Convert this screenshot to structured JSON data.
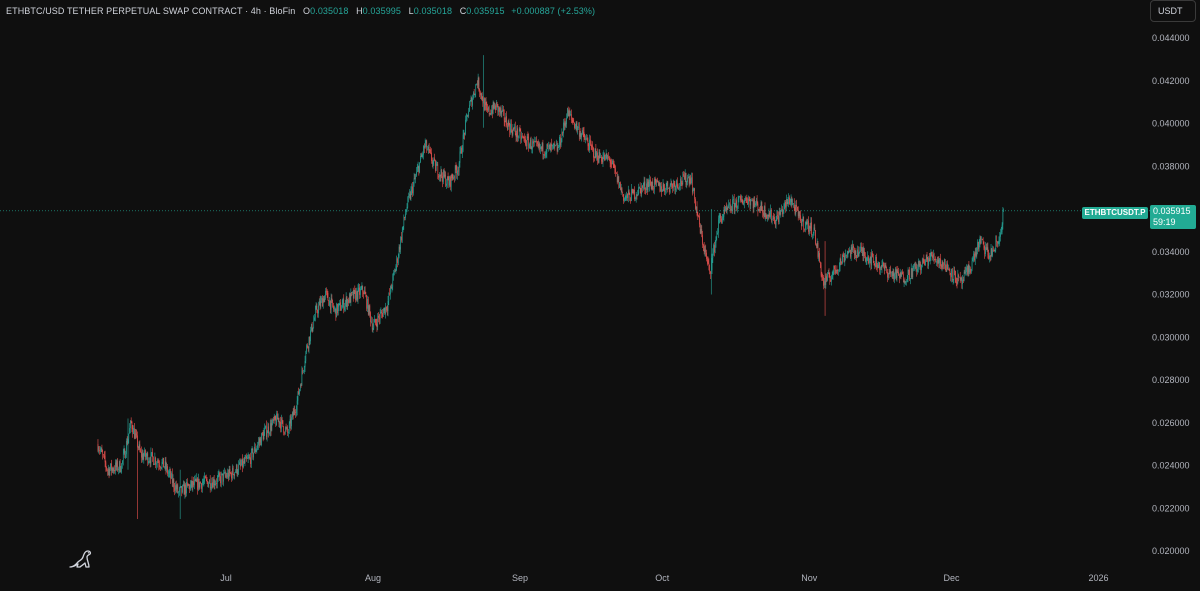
{
  "header": {
    "symbol": "ETHBTC/USD TETHER PERPETUAL SWAP CONTRACT · 4h · BloFin",
    "o_label": "O",
    "o_value": "0.035018",
    "h_label": "H",
    "h_value": "0.035995",
    "l_label": "L",
    "l_value": "0.035018",
    "c_label": "C",
    "c_value": "0.035915",
    "change": "+0.000887 (+2.53%)"
  },
  "currency_button": "USDT",
  "price_tag": {
    "symbol": "ETHBTCUSDT.P",
    "price": "0.035915",
    "countdown": "59:19"
  },
  "colors": {
    "up": "#26a69a",
    "down": "#ef5350",
    "background": "#0f0f0f",
    "axis_text": "#b2b5be",
    "accent": "#22ab94"
  },
  "logo_icon": "dinosaur-icon",
  "chart_data": {
    "type": "candlestick",
    "timeframe": "4h",
    "ylim": [
      0.0195,
      0.0445
    ],
    "y_ticks": [
      "0.044000",
      "0.042000",
      "0.040000",
      "0.038000",
      "0.036000",
      "0.034000",
      "0.032000",
      "0.030000",
      "0.028000",
      "0.026000",
      "0.024000",
      "0.022000",
      "0.020000"
    ],
    "x_ticks": [
      "Jul",
      "Aug",
      "Sep",
      "Oct",
      "Nov",
      "Dec",
      "2026"
    ],
    "current_price": 0.035915,
    "grid": false,
    "series": [
      {
        "name": "ETHBTCUSDT.P",
        "trend": [
          [
            "2025-06-04",
            0.025
          ],
          [
            "2025-06-06",
            0.0238
          ],
          [
            "2025-06-09",
            0.024
          ],
          [
            "2025-06-11",
            0.026
          ],
          [
            "2025-06-13",
            0.0245
          ],
          [
            "2025-06-16",
            0.0243
          ],
          [
            "2025-06-18",
            0.024
          ],
          [
            "2025-06-21",
            0.0227
          ],
          [
            "2025-06-23",
            0.023
          ],
          [
            "2025-06-26",
            0.0232
          ],
          [
            "2025-06-29",
            0.0233
          ],
          [
            "2025-07-02",
            0.0236
          ],
          [
            "2025-07-06",
            0.0243
          ],
          [
            "2025-07-09",
            0.0255
          ],
          [
            "2025-07-12",
            0.0262
          ],
          [
            "2025-07-14",
            0.0255
          ],
          [
            "2025-07-16",
            0.027
          ],
          [
            "2025-07-18",
            0.0295
          ],
          [
            "2025-07-20",
            0.0312
          ],
          [
            "2025-07-22",
            0.032
          ],
          [
            "2025-07-24",
            0.0312
          ],
          [
            "2025-07-27",
            0.0318
          ],
          [
            "2025-07-30",
            0.0322
          ],
          [
            "2025-08-01",
            0.0305
          ],
          [
            "2025-08-04",
            0.0315
          ],
          [
            "2025-08-06",
            0.0335
          ],
          [
            "2025-08-08",
            0.036
          ],
          [
            "2025-08-10",
            0.0375
          ],
          [
            "2025-08-12",
            0.039
          ],
          [
            "2025-08-14",
            0.038
          ],
          [
            "2025-08-17",
            0.0372
          ],
          [
            "2025-08-19",
            0.038
          ],
          [
            "2025-08-21",
            0.0405
          ],
          [
            "2025-08-23",
            0.042
          ],
          [
            "2025-08-25",
            0.0405
          ],
          [
            "2025-08-27",
            0.0408
          ],
          [
            "2025-08-30",
            0.0398
          ],
          [
            "2025-09-02",
            0.0392
          ],
          [
            "2025-09-05",
            0.0388
          ],
          [
            "2025-09-09",
            0.0388
          ],
          [
            "2025-09-11",
            0.0405
          ],
          [
            "2025-09-14",
            0.0395
          ],
          [
            "2025-09-17",
            0.0385
          ],
          [
            "2025-09-20",
            0.0383
          ],
          [
            "2025-09-23",
            0.0365
          ],
          [
            "2025-09-25",
            0.0367
          ],
          [
            "2025-09-28",
            0.0372
          ],
          [
            "2025-10-01",
            0.037
          ],
          [
            "2025-10-04",
            0.0372
          ],
          [
            "2025-10-07",
            0.0375
          ],
          [
            "2025-10-09",
            0.035
          ],
          [
            "2025-10-11",
            0.033
          ],
          [
            "2025-10-13",
            0.0355
          ],
          [
            "2025-10-16",
            0.0362
          ],
          [
            "2025-10-19",
            0.0365
          ],
          [
            "2025-10-22",
            0.036
          ],
          [
            "2025-10-25",
            0.0355
          ],
          [
            "2025-10-28",
            0.0365
          ],
          [
            "2025-10-30",
            0.0355
          ],
          [
            "2025-11-02",
            0.035
          ],
          [
            "2025-11-04",
            0.0325
          ],
          [
            "2025-11-06",
            0.033
          ],
          [
            "2025-11-09",
            0.034
          ],
          [
            "2025-11-12",
            0.034
          ],
          [
            "2025-11-15",
            0.0335
          ],
          [
            "2025-11-18",
            0.033
          ],
          [
            "2025-11-21",
            0.0328
          ],
          [
            "2025-11-24",
            0.0333
          ],
          [
            "2025-11-27",
            0.0338
          ],
          [
            "2025-11-30",
            0.0333
          ],
          [
            "2025-12-03",
            0.0325
          ],
          [
            "2025-12-05",
            0.0333
          ],
          [
            "2025-12-07",
            0.0345
          ],
          [
            "2025-12-09",
            0.0338
          ],
          [
            "2025-12-11",
            0.0345
          ],
          [
            "2025-12-12",
            0.035915
          ]
        ],
        "extremes": [
          [
            "2025-06-10",
            0.0262,
            0.0238
          ],
          [
            "2025-06-12",
            0.0248,
            0.0215
          ],
          [
            "2025-06-21",
            0.0238,
            0.0215
          ],
          [
            "2025-08-24",
            0.0432,
            0.0398
          ],
          [
            "2025-10-11",
            0.036,
            0.032
          ],
          [
            "2025-11-04",
            0.0345,
            0.031
          ],
          [
            "2025-12-12",
            0.035995,
            0.035018
          ]
        ]
      }
    ]
  }
}
